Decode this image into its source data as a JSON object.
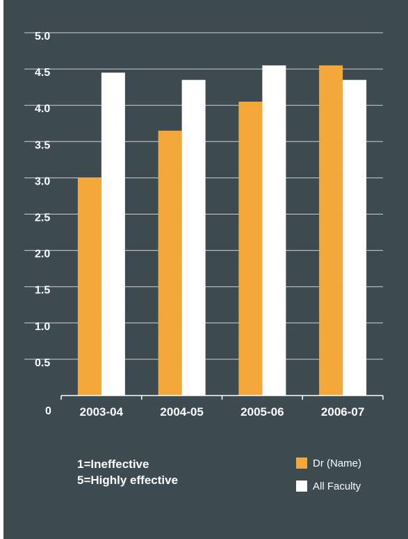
{
  "chart_data": {
    "type": "bar",
    "categories": [
      "2003-04",
      "2004-05",
      "2005-06",
      "2006-07"
    ],
    "series": [
      {
        "name": "Dr (Name)",
        "values": [
          3.0,
          3.65,
          4.05,
          4.55
        ],
        "color": "#f5a83a"
      },
      {
        "name": "All Faculty",
        "values": [
          4.45,
          4.35,
          4.55,
          4.35
        ],
        "color": "#ffffff"
      }
    ],
    "yticks": [
      "0",
      "0.5",
      "1.0",
      "1.5",
      "2.0",
      "2.5",
      "3.0",
      "3.5",
      "4.0",
      "4.5",
      "5.0"
    ],
    "ylim": [
      0,
      5.0
    ],
    "grid": true,
    "legend": "bottom-right",
    "title": "",
    "xlabel": "",
    "ylabel": ""
  },
  "note": {
    "line1": "1=Ineffective",
    "line2": "5=Highly effective"
  },
  "colors": {
    "background": "#3d4a50",
    "gridline": "#ffffff",
    "accent": "#f5a83a"
  }
}
